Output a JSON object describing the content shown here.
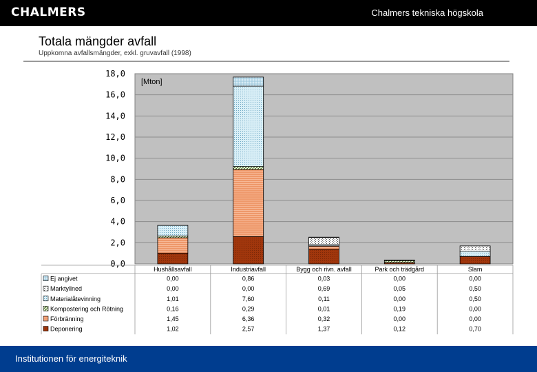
{
  "header": {
    "logo_text": "CHALMERS",
    "school": "Chalmers tekniska högskola"
  },
  "page": {
    "title": "Totala mängder avfall",
    "subtitle": "Uppkomna avfallsmängder, exkl. gruvavfall (1998)"
  },
  "footer": {
    "department": "Institutionen för energiteknik"
  },
  "colors": {
    "topbar": "#000000",
    "footer": "#003d8f",
    "plot_bg": "#c0c0c0"
  },
  "chart_data": {
    "type": "bar",
    "stacked": true,
    "unit_label": "[Mton]",
    "ylim": [
      0,
      18
    ],
    "ytick_labels": [
      "0,0",
      "2,0",
      "4,0",
      "6,0",
      "8,0",
      "10,0",
      "12,0",
      "14,0",
      "16,0",
      "18,0"
    ],
    "grid": true,
    "categories": [
      "Hushållsavfall",
      "Industriavfall",
      "Bygg och rivn. avfall",
      "Park och trädgård",
      "Slam"
    ],
    "series": [
      {
        "name": "Deponering",
        "values": [
          1.02,
          2.57,
          1.37,
          0.12,
          0.7
        ],
        "labels": [
          "1,02",
          "2,57",
          "1,37",
          "0,12",
          "0,70"
        ],
        "color": "#a0360c"
      },
      {
        "name": "Förbränning",
        "values": [
          1.45,
          6.36,
          0.32,
          0.0,
          0.0
        ],
        "labels": [
          "1,45",
          "6,36",
          "0,32",
          "0,00",
          "0,00"
        ],
        "color": "#f4a67e"
      },
      {
        "name": "Kompostering och Rötning",
        "values": [
          0.16,
          0.29,
          0.01,
          0.19,
          0.0
        ],
        "labels": [
          "0,16",
          "0,29",
          "0,01",
          "0,19",
          "0,00"
        ],
        "color": "#6a8f3a"
      },
      {
        "name": "Materialåtevinning",
        "values": [
          1.01,
          7.6,
          0.11,
          0.0,
          0.5
        ],
        "labels": [
          "1,01",
          "7,60",
          "0,11",
          "0,00",
          "0,50"
        ],
        "color": "#a9d8e6"
      },
      {
        "name": "Marktyllned",
        "values": [
          0.0,
          0.0,
          0.69,
          0.05,
          0.5
        ],
        "labels": [
          "0,00",
          "0,00",
          "0,69",
          "0,05",
          "0,50"
        ],
        "color": "#ffffff"
      },
      {
        "name": "Ej angivet",
        "values": [
          0.0,
          0.86,
          0.03,
          0.0,
          0.0
        ],
        "labels": [
          "0,00",
          "0,86",
          "0,03",
          "0,00",
          "0,00"
        ],
        "color": "#cfe6f2"
      }
    ]
  }
}
